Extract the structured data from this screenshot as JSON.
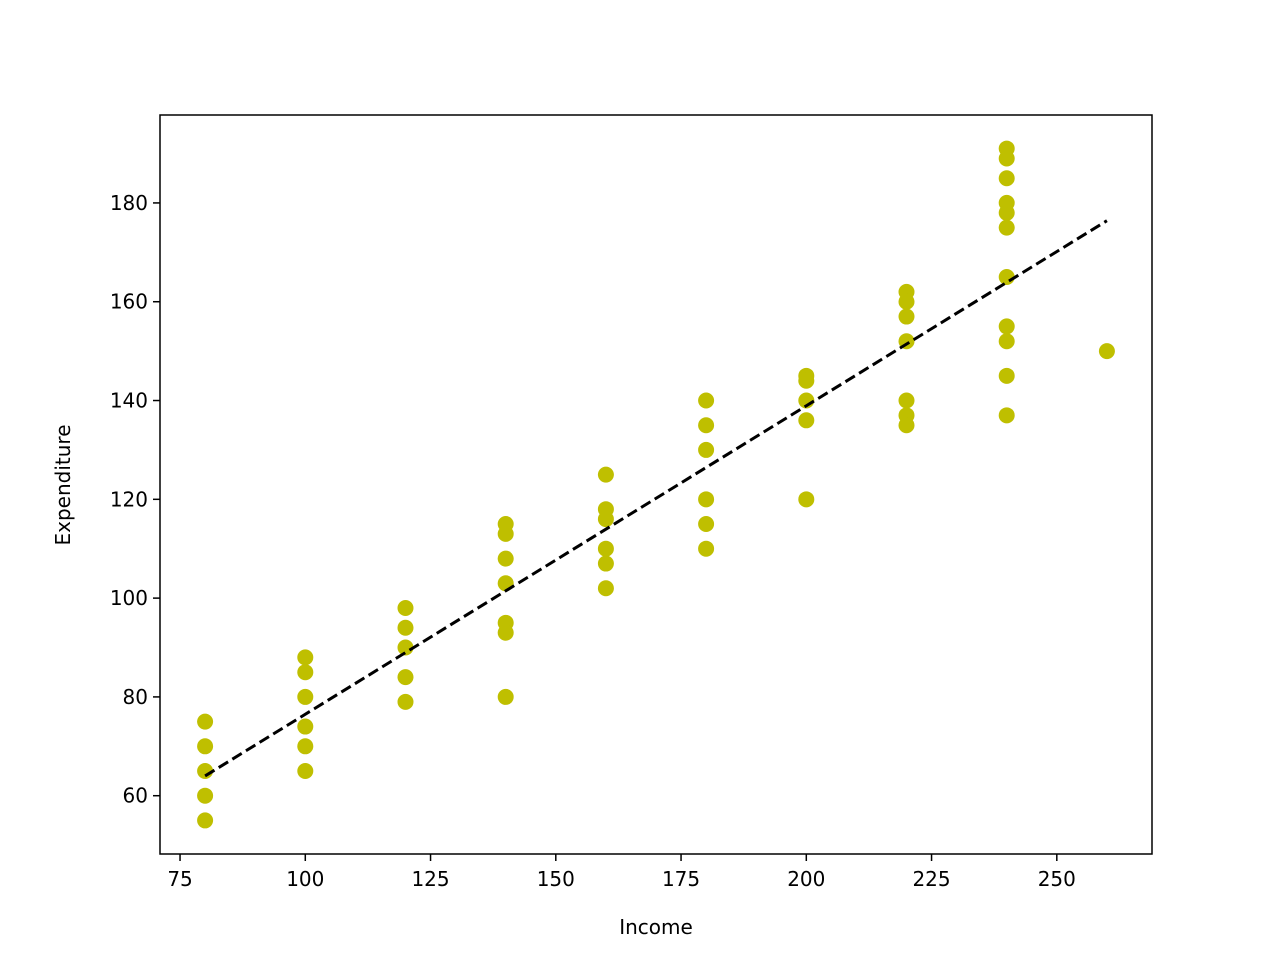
{
  "chart_data": {
    "type": "scatter",
    "x_label": "Income",
    "y_label": "Expenditure",
    "xlim": [
      71,
      269
    ],
    "ylim": [
      48.2,
      197.8
    ],
    "xticks": [
      75,
      100,
      125,
      150,
      175,
      200,
      225,
      250
    ],
    "yticks": [
      60,
      80,
      100,
      120,
      140,
      160,
      180
    ],
    "points": {
      "color": "#bfbf00",
      "x": [
        80,
        80,
        80,
        80,
        80,
        100,
        100,
        100,
        100,
        100,
        100,
        120,
        120,
        120,
        120,
        120,
        140,
        140,
        140,
        140,
        140,
        140,
        140,
        160,
        160,
        160,
        160,
        160,
        160,
        180,
        180,
        180,
        180,
        180,
        180,
        200,
        200,
        200,
        200,
        200,
        220,
        220,
        220,
        220,
        220,
        220,
        220,
        240,
        240,
        240,
        240,
        240,
        240,
        240,
        240,
        240,
        240,
        240,
        260
      ],
      "y": [
        75,
        70,
        65,
        60,
        55,
        88,
        85,
        80,
        74,
        70,
        65,
        98,
        94,
        90,
        84,
        79,
        115,
        113,
        108,
        103,
        95,
        93,
        80,
        125,
        118,
        116,
        110,
        107,
        102,
        140,
        135,
        130,
        120,
        115,
        110,
        145,
        144,
        140,
        136,
        120,
        162,
        160,
        157,
        152,
        140,
        137,
        135,
        191,
        189,
        185,
        180,
        178,
        175,
        165,
        155,
        152,
        145,
        137,
        150
      ]
    },
    "fit_line": {
      "color": "#000000",
      "dashed": true,
      "x": [
        80,
        260
      ],
      "y": [
        64,
        176.4
      ]
    }
  }
}
